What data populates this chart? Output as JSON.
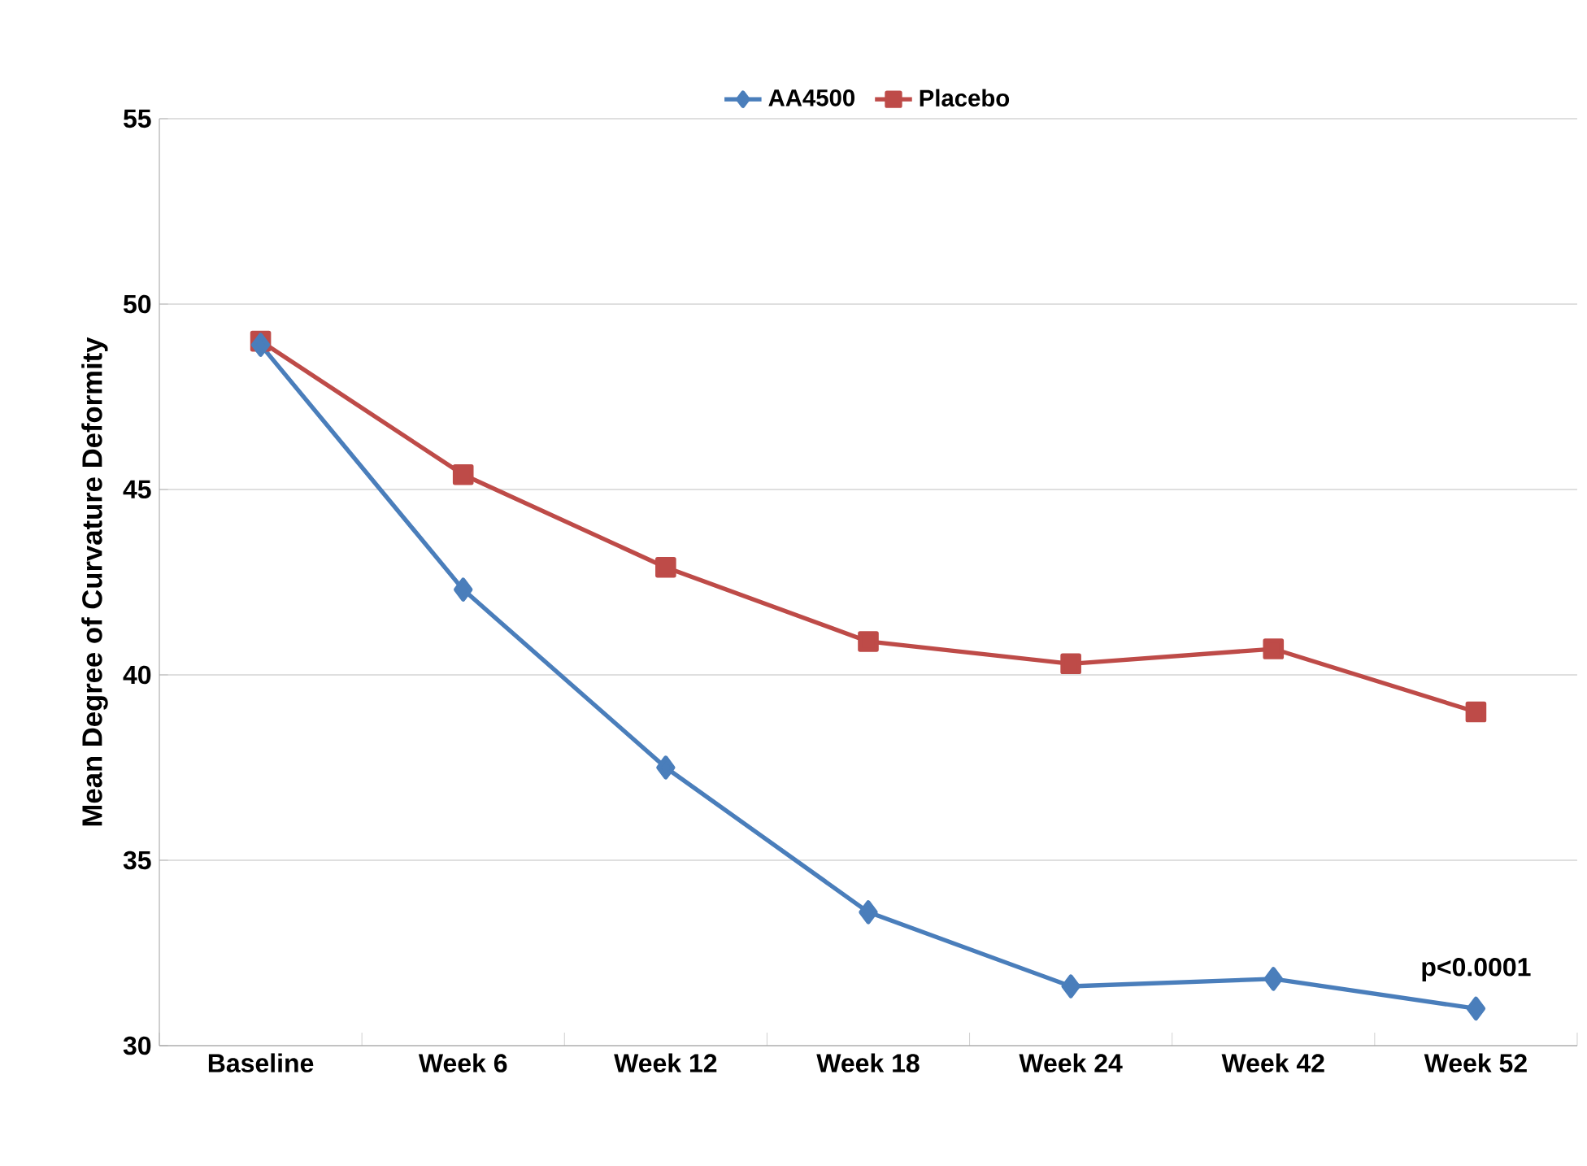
{
  "chart_data": {
    "type": "line",
    "ylabel": "Mean Degree of Curvature Deformity",
    "categories": [
      "Baseline",
      "Week 6",
      "Week 12",
      "Week 18",
      "Week 24",
      "Week 42",
      "Week 52"
    ],
    "series": [
      {
        "name": "AA4500",
        "color": "#4a7ebb",
        "marker": "diamond",
        "values": [
          48.9,
          42.3,
          37.5,
          33.6,
          31.6,
          31.8,
          31.0
        ]
      },
      {
        "name": "Placebo",
        "color": "#be4b48",
        "marker": "square",
        "values": [
          49.0,
          45.4,
          42.9,
          40.9,
          40.3,
          40.7,
          39.0
        ]
      }
    ],
    "ylim": [
      30,
      55
    ],
    "yticks": [
      30,
      35,
      40,
      45,
      50,
      55
    ],
    "grid": "y",
    "legend": "top",
    "line_style": "solid",
    "annotations": [
      {
        "text": "p<0.0001",
        "x": "Week 52",
        "y": 31.0
      }
    ]
  }
}
